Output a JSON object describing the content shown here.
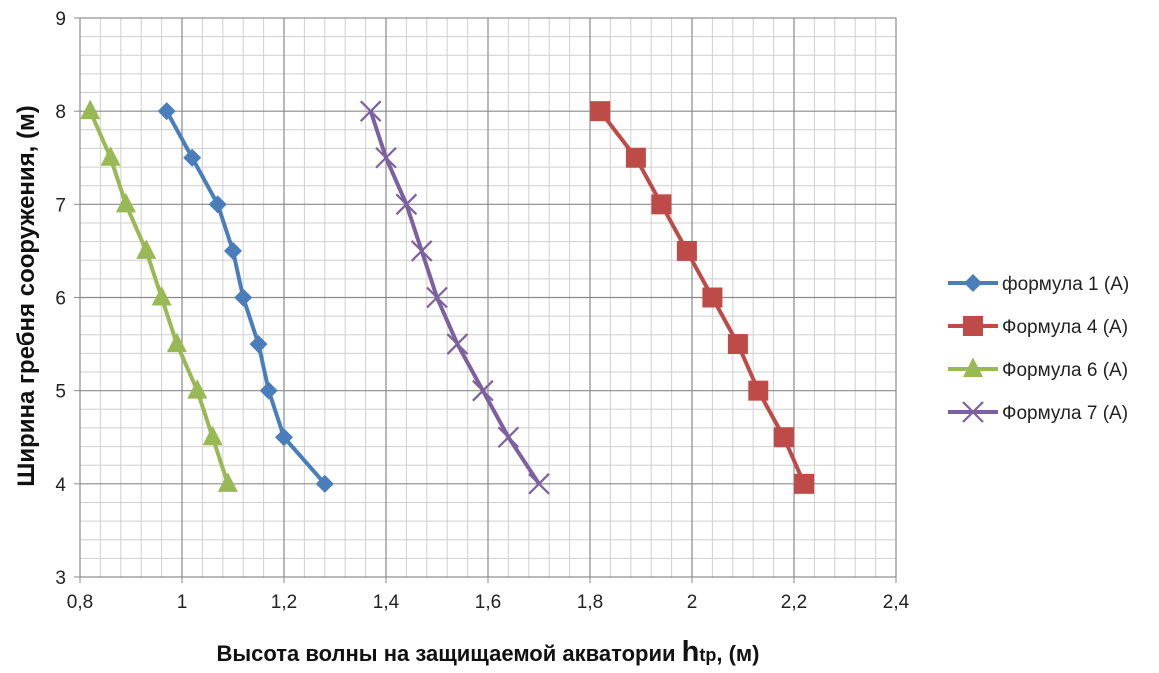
{
  "chart_data": {
    "type": "line",
    "title": "",
    "xlabel_main": "Высота волны на защищаемой акватории ",
    "xlabel_h": "h",
    "xlabel_sub": "tp",
    "xlabel_unit": ", (м)",
    "ylabel": "Ширина гребня сооружения, (м)",
    "xlim": [
      0.8,
      2.4
    ],
    "ylim": [
      3,
      9
    ],
    "x_ticks": [
      "0,8",
      "1",
      "1,2",
      "1,4",
      "1,6",
      "1,8",
      "2",
      "2,2",
      "2,4"
    ],
    "x_tick_values": [
      0.8,
      1.0,
      1.2,
      1.4,
      1.6,
      1.8,
      2.0,
      2.2,
      2.4
    ],
    "y_ticks": [
      "3",
      "4",
      "5",
      "6",
      "7",
      "8",
      "9"
    ],
    "y_tick_values": [
      3,
      4,
      5,
      6,
      7,
      8,
      9
    ],
    "grid": true,
    "legend_position": "right",
    "series": [
      {
        "name": "формула 1 (А)",
        "color": "#4a7ebb",
        "marker": "diamond",
        "points": [
          [
            0.97,
            8
          ],
          [
            1.02,
            7.5
          ],
          [
            1.07,
            7
          ],
          [
            1.1,
            6.5
          ],
          [
            1.12,
            6
          ],
          [
            1.15,
            5.5
          ],
          [
            1.17,
            5
          ],
          [
            1.2,
            4.5
          ],
          [
            1.28,
            4
          ]
        ]
      },
      {
        "name": "Формула 4 (А)",
        "color": "#be4b48",
        "marker": "square",
        "points": [
          [
            1.82,
            8
          ],
          [
            1.89,
            7.5
          ],
          [
            1.94,
            7
          ],
          [
            1.99,
            6.5
          ],
          [
            2.04,
            6
          ],
          [
            2.09,
            5.5
          ],
          [
            2.13,
            5
          ],
          [
            2.18,
            4.5
          ],
          [
            2.22,
            4
          ]
        ]
      },
      {
        "name": "Формула 6 (А)",
        "color": "#98b954",
        "marker": "triangle",
        "points": [
          [
            0.82,
            8
          ],
          [
            0.86,
            7.5
          ],
          [
            0.89,
            7
          ],
          [
            0.93,
            6.5
          ],
          [
            0.96,
            6
          ],
          [
            0.99,
            5.5
          ],
          [
            1.03,
            5
          ],
          [
            1.06,
            4.5
          ],
          [
            1.09,
            4
          ]
        ]
      },
      {
        "name": "Формула 7 (А)",
        "color": "#7d60a0",
        "marker": "x",
        "points": [
          [
            1.37,
            8
          ],
          [
            1.4,
            7.5
          ],
          [
            1.44,
            7
          ],
          [
            1.47,
            6.5
          ],
          [
            1.5,
            6
          ],
          [
            1.54,
            5.5
          ],
          [
            1.59,
            5
          ],
          [
            1.64,
            4.5
          ],
          [
            1.7,
            4
          ]
        ]
      }
    ]
  }
}
